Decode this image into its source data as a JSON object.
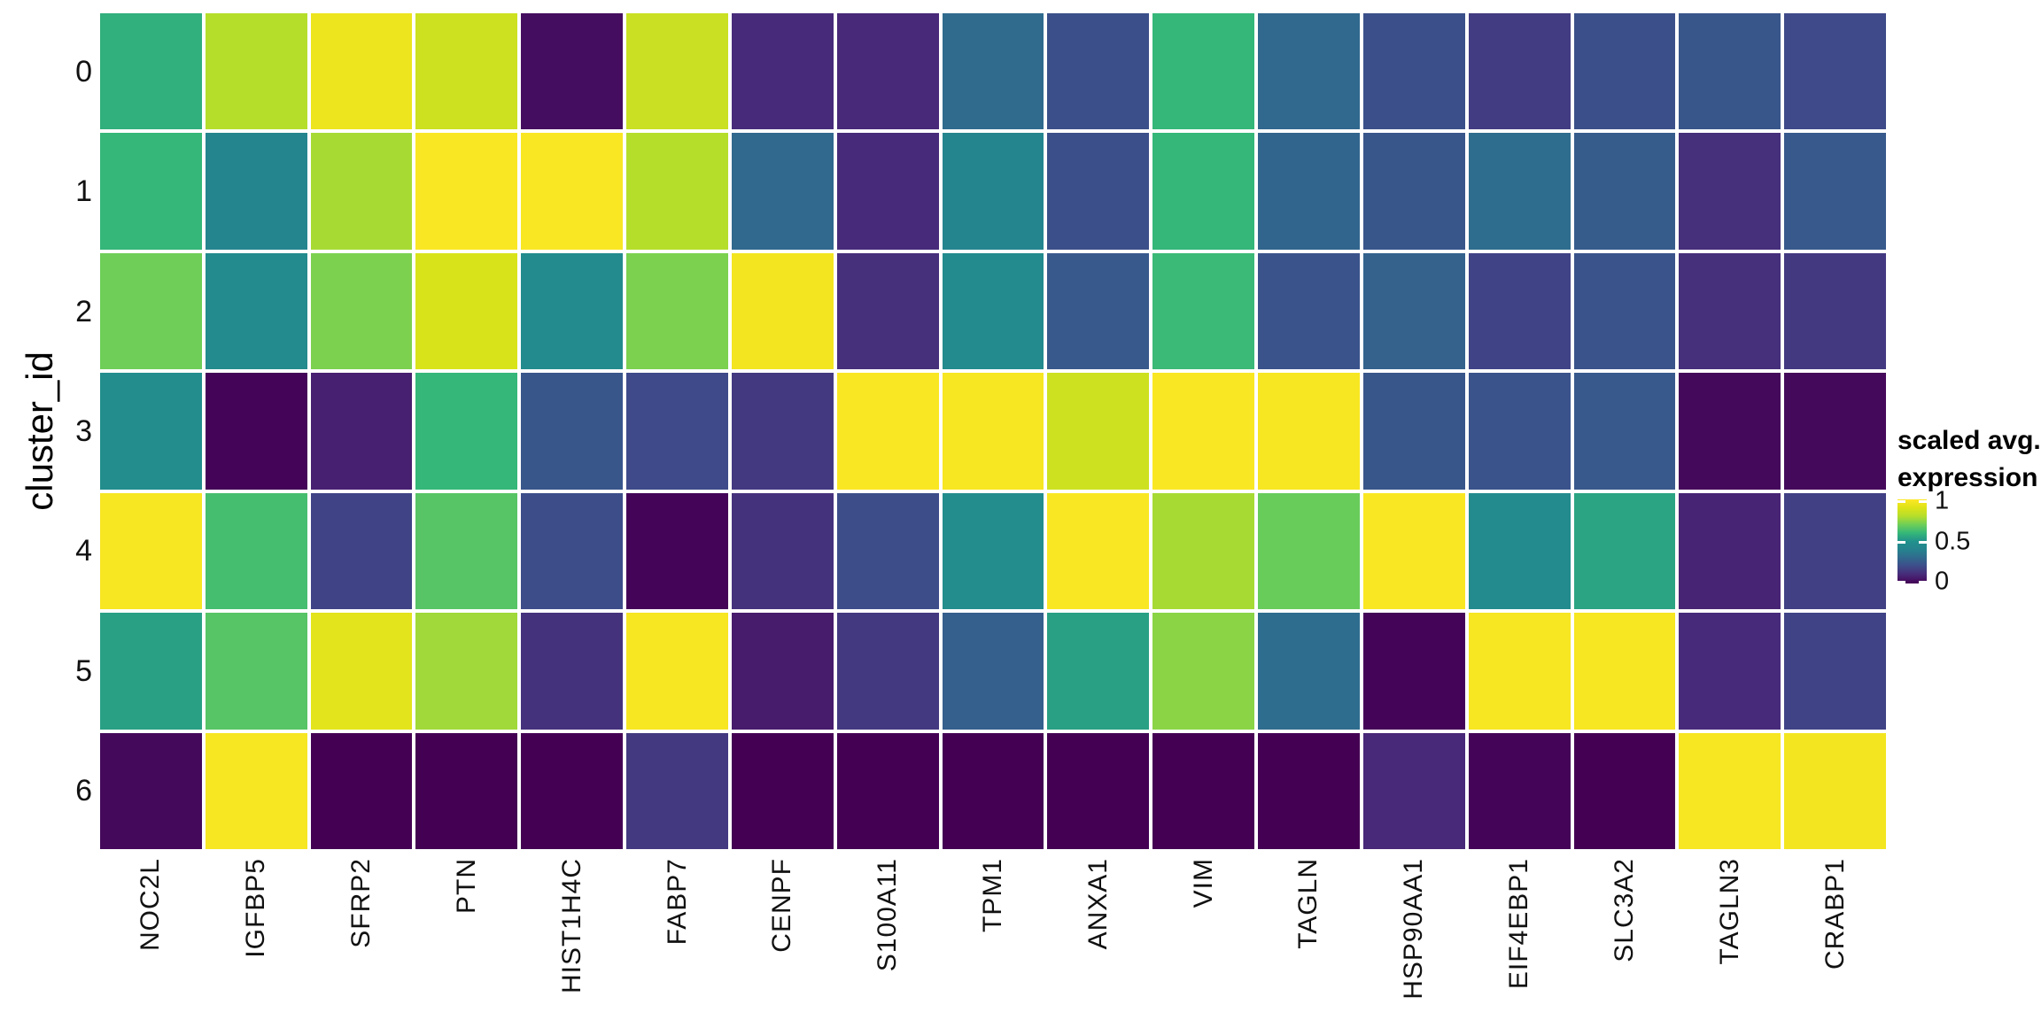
{
  "figure": {
    "background": "#ffffff",
    "text_color": "#111111"
  },
  "chart_data": {
    "type": "heatmap",
    "title": "",
    "xlabel": "",
    "ylabel": "cluster_id",
    "columns": [
      "NOC2L",
      "IGFBP5",
      "SFRP2",
      "PTN",
      "HIST1H4C",
      "FABP7",
      "CENPF",
      "S100A11",
      "TPM1",
      "ANXA1",
      "VIM",
      "TAGLN",
      "HSP90AA1",
      "EIF4EBP1",
      "SLC3A2",
      "TAGLN3",
      "CRABP1"
    ],
    "rows": [
      "0",
      "1",
      "2",
      "3",
      "4",
      "5",
      "6"
    ],
    "values": [
      [
        0.58,
        0.8,
        0.95,
        0.86,
        0.03,
        0.85,
        0.11,
        0.1,
        0.31,
        0.22,
        0.6,
        0.3,
        0.22,
        0.16,
        0.22,
        0.24,
        0.2
      ],
      [
        0.6,
        0.42,
        0.78,
        0.99,
        0.99,
        0.8,
        0.3,
        0.11,
        0.42,
        0.22,
        0.6,
        0.29,
        0.24,
        0.32,
        0.26,
        0.12,
        0.25
      ],
      [
        0.7,
        0.46,
        0.72,
        0.89,
        0.46,
        0.72,
        0.97,
        0.12,
        0.46,
        0.25,
        0.61,
        0.23,
        0.28,
        0.18,
        0.23,
        0.12,
        0.15
      ],
      [
        0.47,
        0.01,
        0.08,
        0.6,
        0.24,
        0.2,
        0.15,
        0.99,
        0.98,
        0.86,
        0.99,
        0.98,
        0.24,
        0.23,
        0.25,
        0.02,
        0.02
      ],
      [
        0.98,
        0.63,
        0.18,
        0.66,
        0.21,
        0.01,
        0.13,
        0.21,
        0.47,
        0.99,
        0.78,
        0.69,
        0.99,
        0.46,
        0.55,
        0.09,
        0.17
      ],
      [
        0.54,
        0.66,
        0.92,
        0.77,
        0.13,
        0.98,
        0.07,
        0.15,
        0.27,
        0.54,
        0.74,
        0.32,
        0.01,
        0.98,
        0.98,
        0.11,
        0.18
      ],
      [
        0.02,
        0.98,
        0.0,
        0.0,
        0.0,
        0.15,
        0.0,
        0.0,
        0.0,
        0.0,
        0.0,
        0.0,
        0.1,
        0.01,
        0.0,
        0.98,
        0.97
      ]
    ],
    "value_range": [
      0,
      1
    ],
    "grid": "white-gaps",
    "colormap": "viridis",
    "colormap_stops": [
      [
        0.0,
        "#440154"
      ],
      [
        0.1,
        "#482878"
      ],
      [
        0.2,
        "#3e4a89"
      ],
      [
        0.3,
        "#31688e"
      ],
      [
        0.4,
        "#26828e"
      ],
      [
        0.5,
        "#21918c"
      ],
      [
        0.6,
        "#35b779"
      ],
      [
        0.7,
        "#6ece58"
      ],
      [
        0.8,
        "#b5de2b"
      ],
      [
        0.9,
        "#dde318"
      ],
      [
        1.0,
        "#fde725"
      ]
    ],
    "legend": {
      "position": "right",
      "title_line1": "scaled avg.",
      "title_line2": "expression",
      "ticks": [
        "1",
        "0.5",
        "0"
      ],
      "tick_values": [
        1,
        0.5,
        0
      ]
    }
  }
}
